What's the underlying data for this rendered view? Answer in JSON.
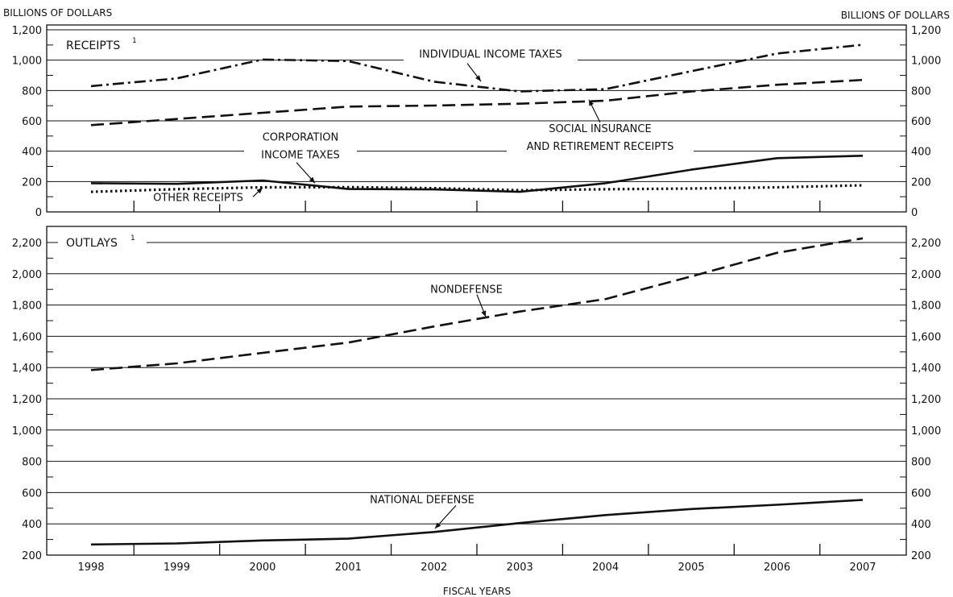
{
  "left_unit_label": "BILLIONS OF DOLLARS",
  "right_unit_label": "BILLIONS OF DOLLARS",
  "xlabel": "FISCAL YEARS",
  "footnote_mark": "1",
  "colors": {
    "ink": "#111111",
    "background": "#ffffff"
  },
  "chart_data": [
    {
      "type": "line",
      "title": "RECEIPTS",
      "x": [
        1998,
        1999,
        2000,
        2001,
        2002,
        2003,
        2004,
        2005,
        2006,
        2007
      ],
      "ylim": [
        0,
        1200
      ],
      "yticks": [
        0,
        200,
        400,
        600,
        800,
        1000,
        1200
      ],
      "ytick_labels": [
        "0",
        "200",
        "400",
        "600",
        "800",
        "1,000",
        "1,200"
      ],
      "grid": true,
      "series": [
        {
          "name": "INDIVIDUAL INCOME TAXES",
          "line_style": "dash-dot",
          "values": [
            829,
            880,
            1004,
            994,
            858,
            794,
            809,
            927,
            1044,
            1101
          ]
        },
        {
          "name": "SOCIAL INSURANCE AND RETIREMENT RECEIPTS",
          "name_lines": [
            "SOCIAL INSURANCE",
            "AND RETIREMENT RECEIPTS"
          ],
          "line_style": "dashed",
          "values": [
            572,
            612,
            653,
            694,
            701,
            713,
            733,
            794,
            838,
            870
          ]
        },
        {
          "name": "CORPORATION INCOME TAXES",
          "name_lines": [
            "CORPORATION",
            "INCOME TAXES"
          ],
          "line_style": "solid",
          "values": [
            189,
            185,
            207,
            151,
            148,
            132,
            189,
            278,
            354,
            370
          ]
        },
        {
          "name": "OTHER RECEIPTS",
          "line_style": "dotted",
          "values": [
            132,
            150,
            162,
            163,
            156,
            143,
            149,
            154,
            162,
            175
          ]
        }
      ]
    },
    {
      "type": "line",
      "title": "OUTLAYS",
      "x": [
        1998,
        1999,
        2000,
        2001,
        2002,
        2003,
        2004,
        2005,
        2006,
        2007
      ],
      "xtick_labels": [
        "1998",
        "1999",
        "2000",
        "2001",
        "2002",
        "2003",
        "2004",
        "2005",
        "2006",
        "2007"
      ],
      "ylim": [
        200,
        2300
      ],
      "yticks": [
        200,
        400,
        600,
        800,
        1000,
        1200,
        1400,
        1600,
        1800,
        2000,
        2200
      ],
      "ytick_labels": [
        "200",
        "400",
        "600",
        "800",
        "1,000",
        "1,200",
        "1,400",
        "1,600",
        "1,800",
        "2,000",
        "2,200"
      ],
      "grid": true,
      "series": [
        {
          "name": "NONDEFENSE",
          "line_style": "dashed",
          "values": [
            1384,
            1427,
            1494,
            1560,
            1663,
            1758,
            1838,
            1983,
            2134,
            2227
          ]
        },
        {
          "name": "NATIONAL DEFENSE",
          "line_style": "solid",
          "values": [
            268,
            275,
            294,
            305,
            348,
            405,
            456,
            495,
            522,
            553
          ]
        }
      ]
    }
  ]
}
